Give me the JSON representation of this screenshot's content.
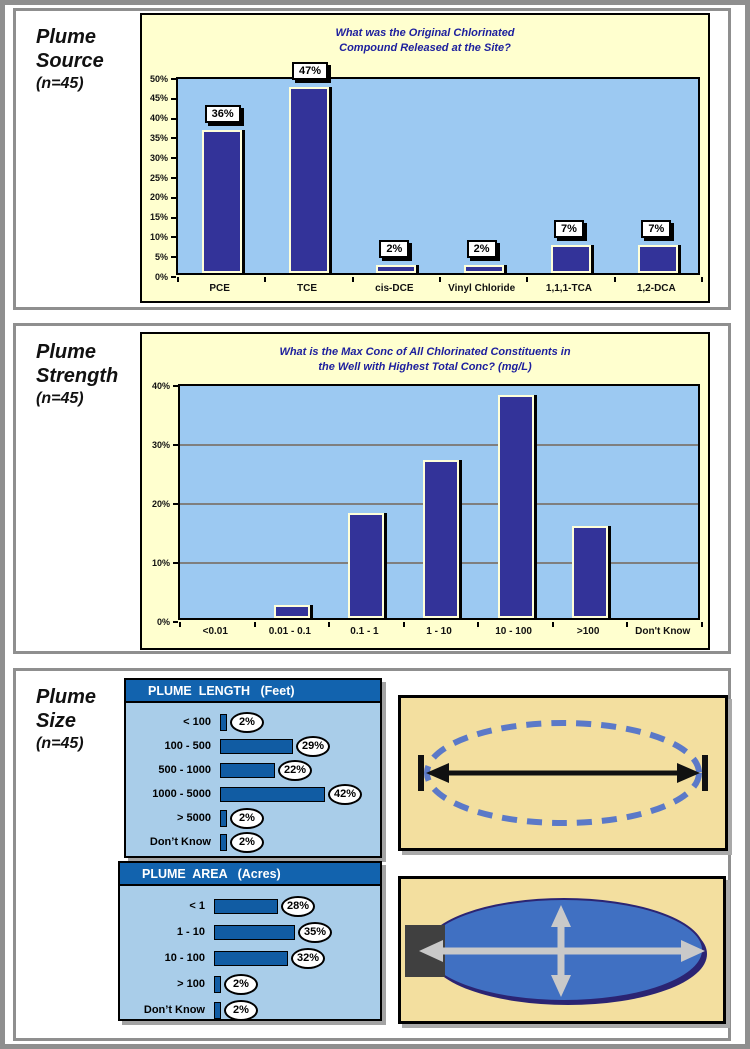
{
  "panels": [
    {
      "id": "source",
      "label_lines": [
        "Plume",
        "Source",
        "(n=45)"
      ]
    },
    {
      "id": "strength",
      "label_lines": [
        "Plume",
        "Strength",
        "(n=45)"
      ]
    },
    {
      "id": "size",
      "label_lines": [
        "Plume",
        "Size",
        "(n=45)"
      ]
    }
  ],
  "chart_data": [
    {
      "type": "bar",
      "title_lines": [
        "What was the Original Chlorinated",
        "Compound Released at the Site?"
      ],
      "categories": [
        "PCE",
        "TCE",
        "cis-DCE",
        "Vinyl Chloride",
        "1,1,1-TCA",
        "1,2-DCA"
      ],
      "values": [
        36,
        47,
        2,
        2,
        7,
        7
      ],
      "value_labels": [
        "36%",
        "47%",
        "2%",
        "2%",
        "7%",
        "7%"
      ],
      "ylim": [
        0,
        50
      ],
      "ytick_step": 5,
      "ytick_suffix": "%",
      "gridlines": [],
      "legend": "none",
      "bar_color": "#333399",
      "plot_bg": "#9CC9F2",
      "chart_bg": "#FFFFCF",
      "title_color": "#1E209E"
    },
    {
      "type": "bar",
      "title_lines": [
        "What is the Max Conc of All Chlorinated Constituents in",
        "the Well with Highest Total Conc? (mg/L)"
      ],
      "categories": [
        "<0.01",
        "0.01 - 0.1",
        "0.1 - 1",
        "1 - 10",
        "10 - 100",
        ">100",
        "Don't Know"
      ],
      "values": [
        0,
        2.2,
        17.8,
        26.7,
        37.8,
        15.6,
        0
      ],
      "value_labels": null,
      "ylim": [
        0,
        40
      ],
      "ytick_step": 10,
      "ytick_suffix": "%",
      "gridlines": [
        10,
        20,
        30
      ],
      "legend": "none",
      "bar_color": "#333399",
      "plot_bg": "#9CC9F2",
      "chart_bg": "#FFFFCF",
      "title_color": "#1E209E"
    },
    {
      "type": "bar",
      "orientation": "horizontal",
      "title": "PLUME  LENGTH   (Feet)",
      "categories": [
        "< 100",
        "100 - 500",
        "500 - 1000",
        "1000 - 5000",
        "> 5000",
        "Don’t Know"
      ],
      "values": [
        2,
        29,
        22,
        42,
        2,
        2
      ],
      "value_labels": [
        "2%",
        "29%",
        "22%",
        "42%",
        "2%",
        "2%"
      ],
      "header_bg": "#1263AE",
      "body_bg": "#A9CDE9",
      "bar_color": "#115CA3"
    },
    {
      "type": "bar",
      "orientation": "horizontal",
      "title": "PLUME  AREA   (Acres)",
      "categories": [
        "< 1",
        "1 - 10",
        "10 - 100",
        "> 100",
        "Don’t Know"
      ],
      "values": [
        28,
        35,
        32,
        2,
        2
      ],
      "value_labels": [
        "28%",
        "35%",
        "32%",
        "2%",
        "2%"
      ],
      "header_bg": "#1263AE",
      "body_bg": "#A9CDE9",
      "bar_color": "#115CA3"
    }
  ],
  "diagrams": {
    "length_concept": {
      "background": "#F3DF9F",
      "dashed_ellipse_color": "#5B79C8",
      "arrow_color": "#111111"
    },
    "area_concept": {
      "background": "#F3DF9F",
      "plume_fill": "#4070C2",
      "plume_outline": "#2B2473",
      "source_square_color": "#404040",
      "arrow_color": "#C9C9C9"
    }
  },
  "frame": {
    "border_color": "#8f8f8f"
  }
}
